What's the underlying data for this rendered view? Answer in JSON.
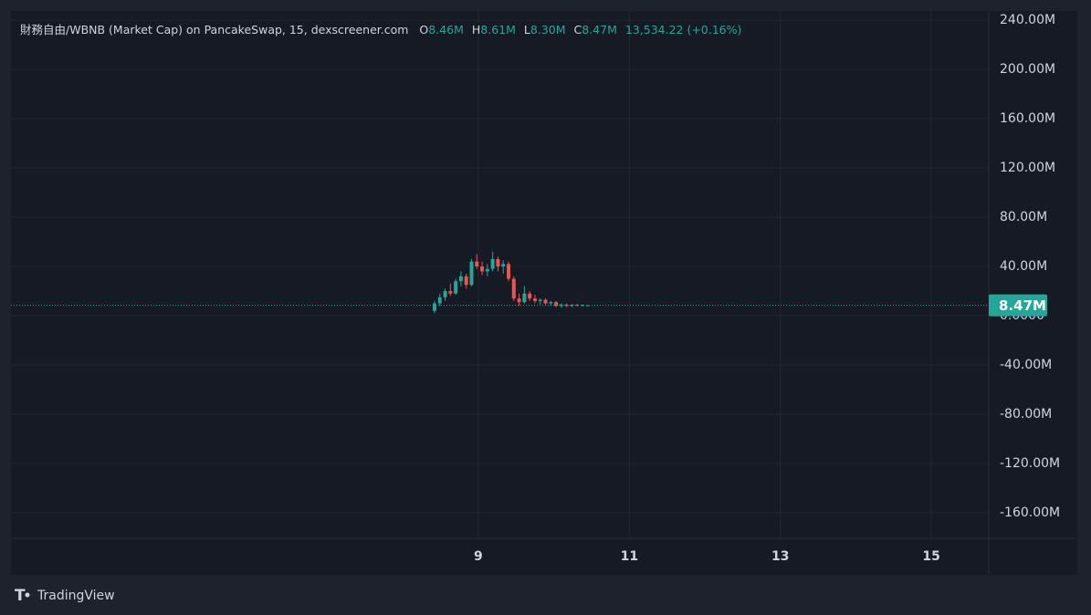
{
  "chart_data": {
    "type": "candlestick",
    "title": "財務自由/WBNB (Market Cap) on PancakeSwap, 15, dexscreener.com",
    "ohlc_header": [
      {
        "key": "O",
        "value": "8.46M"
      },
      {
        "key": "H",
        "value": "8.61M"
      },
      {
        "key": "L",
        "value": "8.30M"
      },
      {
        "key": "C",
        "value": "8.47M"
      }
    ],
    "change": "13,534.22 (+0.16%)",
    "x": [
      8.42,
      8.49,
      8.56,
      8.63,
      8.7,
      8.77,
      8.84,
      8.91,
      8.98,
      9.05,
      9.12,
      9.19,
      9.26,
      9.33,
      9.4,
      9.47,
      9.54,
      9.61,
      9.68,
      9.75,
      9.82,
      9.89,
      9.96,
      10.03,
      10.1,
      10.17,
      10.24,
      10.31,
      10.38,
      10.45
    ],
    "open": [
      4,
      10,
      15,
      20,
      18,
      28,
      32,
      25,
      44,
      40,
      36,
      38,
      46,
      40,
      42,
      30,
      14,
      11,
      18,
      14,
      12,
      13,
      10,
      11,
      8,
      9,
      8,
      8.8,
      8.2,
      8.46
    ],
    "high": [
      12,
      18,
      22,
      26,
      30,
      36,
      34,
      46,
      50,
      44,
      42,
      52,
      48,
      45,
      44,
      32,
      18,
      24,
      20,
      17,
      14,
      14,
      12,
      12,
      10,
      10,
      9.5,
      9.6,
      9,
      8.61
    ],
    "low": [
      2,
      8,
      12,
      16,
      17,
      24,
      22,
      24,
      38,
      33,
      32,
      36,
      36,
      34,
      28,
      12,
      8,
      10,
      12,
      10,
      9,
      9,
      8,
      7,
      6.5,
      7,
      7,
      7.8,
      7.5,
      8.3
    ],
    "close": [
      10,
      15,
      20,
      18,
      28,
      32,
      25,
      44,
      40,
      36,
      38,
      46,
      40,
      42,
      30,
      14,
      11,
      18,
      14,
      12,
      13,
      10,
      11,
      8,
      9,
      8,
      8.8,
      8.2,
      8.9,
      8.47
    ],
    "up_color": "#26a69a",
    "down_color": "#ef5350",
    "last_price": {
      "value": 8.47,
      "label": "8.47M"
    },
    "xlim": [
      2.81,
      15.76
    ],
    "xticks": [
      9,
      11,
      13,
      15
    ],
    "ylim": [
      -180.7,
      247.4
    ],
    "yticks": [
      {
        "value": 240,
        "label": "240.00M"
      },
      {
        "value": 200,
        "label": "200.00M"
      },
      {
        "value": 160,
        "label": "160.00M"
      },
      {
        "value": 120,
        "label": "120.00M"
      },
      {
        "value": 80,
        "label": "80.00M"
      },
      {
        "value": 40,
        "label": "40.00M"
      },
      {
        "value": 0,
        "label": "0.0000"
      },
      {
        "value": -40,
        "label": "-40.00M"
      },
      {
        "value": -80,
        "label": "-80.00M"
      },
      {
        "value": -120,
        "label": "-120.00M"
      },
      {
        "value": -160,
        "label": "-160.00M"
      }
    ],
    "grid": true,
    "footer": "TradingView"
  }
}
